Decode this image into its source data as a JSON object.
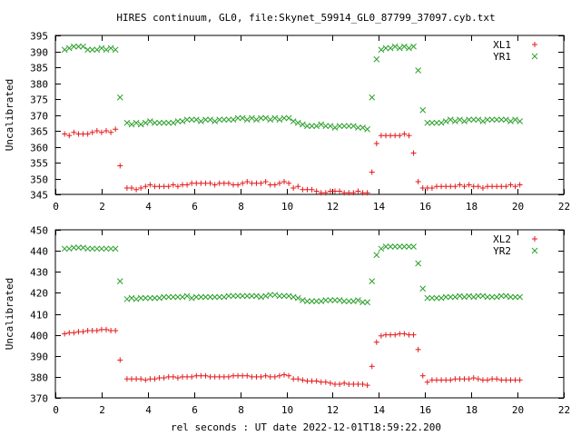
{
  "title": "HIRES continuum, GL0, file:Skynet_59914_GL0_87799_37097.cyb.txt",
  "xlabel": "rel seconds : UT date 2022-12-01T18:59:22.200",
  "chart_data": [
    {
      "type": "scatter",
      "ylabel": "Uncalibrated",
      "xlim": [
        0,
        22
      ],
      "ylim": [
        345,
        395
      ],
      "xticks": [
        0,
        2,
        4,
        6,
        8,
        10,
        12,
        14,
        16,
        18,
        20,
        22
      ],
      "yticks": [
        345,
        350,
        355,
        360,
        365,
        370,
        375,
        380,
        385,
        390,
        395
      ],
      "legend": "top-right",
      "series": [
        {
          "name": "XL1",
          "marker": "plus",
          "color": "#e41a1c",
          "x": [
            0.4,
            0.6,
            0.8,
            1.0,
            1.2,
            1.4,
            1.6,
            1.8,
            2.0,
            2.2,
            2.4,
            2.6,
            2.8,
            3.1,
            3.3,
            3.5,
            3.7,
            3.9,
            4.1,
            4.3,
            4.5,
            4.7,
            4.9,
            5.1,
            5.3,
            5.5,
            5.7,
            5.9,
            6.1,
            6.3,
            6.5,
            6.7,
            6.9,
            7.1,
            7.3,
            7.5,
            7.7,
            7.9,
            8.1,
            8.3,
            8.5,
            8.7,
            8.9,
            9.1,
            9.3,
            9.5,
            9.7,
            9.9,
            10.1,
            10.3,
            10.5,
            10.7,
            10.9,
            11.1,
            11.3,
            11.5,
            11.7,
            11.9,
            12.1,
            12.3,
            12.5,
            12.7,
            12.9,
            13.1,
            13.3,
            13.5,
            13.7,
            13.9,
            14.1,
            14.3,
            14.5,
            14.7,
            14.9,
            15.1,
            15.3,
            15.5,
            15.7,
            15.9,
            16.1,
            16.3,
            16.5,
            16.7,
            16.9,
            17.1,
            17.3,
            17.5,
            17.7,
            17.9,
            18.1,
            18.3,
            18.5,
            18.7,
            18.9,
            19.1,
            19.3,
            19.5,
            19.7,
            19.9,
            20.1
          ],
          "y": [
            364,
            363.5,
            364.5,
            364,
            364,
            364,
            364.5,
            365,
            364.5,
            365,
            364.5,
            365.5,
            354,
            347,
            347,
            346.5,
            347,
            347.5,
            348,
            347.5,
            347.5,
            347.5,
            347.5,
            348,
            347.5,
            348,
            348,
            348.5,
            348.5,
            348.5,
            348.5,
            348.5,
            348,
            348.5,
            348.5,
            348.5,
            348,
            348,
            348.5,
            349,
            348.5,
            348.5,
            348.5,
            349,
            348,
            348,
            348.5,
            349,
            348.5,
            347,
            347.5,
            346.5,
            346.5,
            346.5,
            346,
            345.5,
            345.5,
            346,
            346,
            346,
            345.5,
            345.5,
            345.5,
            346,
            345.5,
            345.5,
            352,
            361,
            363.5,
            363.5,
            363.5,
            363.5,
            363.5,
            364,
            363.5,
            358,
            349,
            347,
            347,
            347,
            347.5,
            347.5,
            347.5,
            347.5,
            347.5,
            348,
            347.5,
            348,
            347.5,
            347.5,
            347,
            347.5,
            347.5,
            347.5,
            347.5,
            347.5,
            348,
            347.5,
            348
          ]
        },
        {
          "name": "YR1",
          "marker": "cross",
          "color": "#2ca02c",
          "x": [
            0.4,
            0.6,
            0.8,
            1.0,
            1.2,
            1.4,
            1.6,
            1.8,
            2.0,
            2.2,
            2.4,
            2.6,
            2.8,
            3.1,
            3.3,
            3.5,
            3.7,
            3.9,
            4.1,
            4.3,
            4.5,
            4.7,
            4.9,
            5.1,
            5.3,
            5.5,
            5.7,
            5.9,
            6.1,
            6.3,
            6.5,
            6.7,
            6.9,
            7.1,
            7.3,
            7.5,
            7.7,
            7.9,
            8.1,
            8.3,
            8.5,
            8.7,
            8.9,
            9.1,
            9.3,
            9.5,
            9.7,
            9.9,
            10.1,
            10.3,
            10.5,
            10.7,
            10.9,
            11.1,
            11.3,
            11.5,
            11.7,
            11.9,
            12.1,
            12.3,
            12.5,
            12.7,
            12.9,
            13.1,
            13.3,
            13.5,
            13.7,
            13.9,
            14.1,
            14.3,
            14.5,
            14.7,
            14.9,
            15.1,
            15.3,
            15.5,
            15.7,
            15.9,
            16.1,
            16.3,
            16.5,
            16.7,
            16.9,
            17.1,
            17.3,
            17.5,
            17.7,
            17.9,
            18.1,
            18.3,
            18.5,
            18.7,
            18.9,
            19.1,
            19.3,
            19.5,
            19.7,
            19.9,
            20.1
          ],
          "y": [
            390.5,
            391,
            391.5,
            391.5,
            391.5,
            390.5,
            390.5,
            390.5,
            391,
            390.5,
            391,
            390.5,
            375.5,
            367.5,
            367,
            367.5,
            367,
            367.5,
            368,
            367.5,
            367.5,
            367.5,
            367.5,
            367.5,
            368,
            368,
            368.5,
            368.5,
            368.5,
            368,
            368.5,
            368.5,
            368,
            368.5,
            368.5,
            368.5,
            368.5,
            369,
            369,
            368.5,
            369,
            368.5,
            369,
            369,
            368.5,
            369,
            368.5,
            369,
            369,
            368,
            367.5,
            367,
            366.5,
            366.5,
            366.5,
            367,
            366.5,
            366.5,
            366,
            366.5,
            366.5,
            366.5,
            366.5,
            366,
            366,
            365.5,
            375.5,
            387.5,
            390.5,
            391,
            391,
            391.5,
            391,
            391.5,
            391,
            391.5,
            384,
            371.5,
            367.5,
            367.5,
            367.5,
            367.5,
            368,
            368.5,
            368,
            368.5,
            368,
            368.5,
            368.5,
            368.5,
            368,
            368.5,
            368.5,
            368.5,
            368.5,
            368.5,
            368,
            368.5,
            368
          ]
        }
      ]
    },
    {
      "type": "scatter",
      "ylabel": "Uncalibrated",
      "xlim": [
        0,
        22
      ],
      "ylim": [
        370,
        450
      ],
      "xticks": [
        0,
        2,
        4,
        6,
        8,
        10,
        12,
        14,
        16,
        18,
        20,
        22
      ],
      "yticks": [
        370,
        380,
        390,
        400,
        410,
        420,
        430,
        440,
        450
      ],
      "legend": "top-right",
      "series": [
        {
          "name": "XL2",
          "marker": "plus",
          "color": "#e41a1c",
          "x": [
            0.4,
            0.6,
            0.8,
            1.0,
            1.2,
            1.4,
            1.6,
            1.8,
            2.0,
            2.2,
            2.4,
            2.6,
            2.8,
            3.1,
            3.3,
            3.5,
            3.7,
            3.9,
            4.1,
            4.3,
            4.5,
            4.7,
            4.9,
            5.1,
            5.3,
            5.5,
            5.7,
            5.9,
            6.1,
            6.3,
            6.5,
            6.7,
            6.9,
            7.1,
            7.3,
            7.5,
            7.7,
            7.9,
            8.1,
            8.3,
            8.5,
            8.7,
            8.9,
            9.1,
            9.3,
            9.5,
            9.7,
            9.9,
            10.1,
            10.3,
            10.5,
            10.7,
            10.9,
            11.1,
            11.3,
            11.5,
            11.7,
            11.9,
            12.1,
            12.3,
            12.5,
            12.7,
            12.9,
            13.1,
            13.3,
            13.5,
            13.7,
            13.9,
            14.1,
            14.3,
            14.5,
            14.7,
            14.9,
            15.1,
            15.3,
            15.5,
            15.7,
            15.9,
            16.1,
            16.3,
            16.5,
            16.7,
            16.9,
            17.1,
            17.3,
            17.5,
            17.7,
            17.9,
            18.1,
            18.3,
            18.5,
            18.7,
            18.9,
            19.1,
            19.3,
            19.5,
            19.7,
            19.9,
            20.1
          ],
          "y": [
            400.5,
            401,
            401,
            401.5,
            401.5,
            402,
            402,
            402,
            402.5,
            402.5,
            402,
            402,
            388,
            379,
            379,
            379,
            379,
            378.5,
            379,
            379,
            379.5,
            379.5,
            380,
            380,
            379.5,
            380,
            380,
            380,
            380.5,
            380.5,
            380.5,
            380,
            380,
            380,
            380,
            380,
            380.5,
            380.5,
            380.5,
            380.5,
            380,
            380,
            380,
            380.5,
            380,
            380,
            380.5,
            381,
            380.5,
            379,
            379,
            378.5,
            378,
            378,
            378,
            377.5,
            377.5,
            377,
            376.5,
            376.5,
            377,
            376.5,
            376.5,
            376.5,
            376.5,
            376,
            385,
            396.5,
            399.5,
            400,
            400,
            400,
            400.5,
            400.5,
            400,
            400,
            393,
            380.5,
            377.5,
            378.5,
            378.5,
            378.5,
            378.5,
            378.5,
            379,
            379,
            379,
            379,
            379.5,
            379,
            378.5,
            378.5,
            379,
            379,
            378.5,
            378.5,
            378.5,
            378.5,
            378.5
          ]
        },
        {
          "name": "YR2",
          "marker": "cross",
          "color": "#2ca02c",
          "x": [
            0.4,
            0.6,
            0.8,
            1.0,
            1.2,
            1.4,
            1.6,
            1.8,
            2.0,
            2.2,
            2.4,
            2.6,
            2.8,
            3.1,
            3.3,
            3.5,
            3.7,
            3.9,
            4.1,
            4.3,
            4.5,
            4.7,
            4.9,
            5.1,
            5.3,
            5.5,
            5.7,
            5.9,
            6.1,
            6.3,
            6.5,
            6.7,
            6.9,
            7.1,
            7.3,
            7.5,
            7.7,
            7.9,
            8.1,
            8.3,
            8.5,
            8.7,
            8.9,
            9.1,
            9.3,
            9.5,
            9.7,
            9.9,
            10.1,
            10.3,
            10.5,
            10.7,
            10.9,
            11.1,
            11.3,
            11.5,
            11.7,
            11.9,
            12.1,
            12.3,
            12.5,
            12.7,
            12.9,
            13.1,
            13.3,
            13.5,
            13.7,
            13.9,
            14.1,
            14.3,
            14.5,
            14.7,
            14.9,
            15.1,
            15.3,
            15.5,
            15.7,
            15.9,
            16.1,
            16.3,
            16.5,
            16.7,
            16.9,
            17.1,
            17.3,
            17.5,
            17.7,
            17.9,
            18.1,
            18.3,
            18.5,
            18.7,
            18.9,
            19.1,
            19.3,
            19.5,
            19.7,
            19.9,
            20.1
          ],
          "y": [
            441,
            441,
            441.5,
            441.5,
            441.5,
            441,
            441,
            441,
            441,
            441,
            441,
            441,
            425.5,
            417,
            417.5,
            417,
            417.5,
            417.5,
            417.5,
            417.5,
            417.5,
            418,
            418,
            418,
            418,
            418,
            418.5,
            417.5,
            418,
            418,
            418,
            418,
            418,
            418,
            418,
            418.5,
            418.5,
            418.5,
            418.5,
            418.5,
            418.5,
            418.5,
            418,
            418.5,
            419,
            419,
            418.5,
            418.5,
            418.5,
            418,
            417.5,
            416.5,
            416,
            416,
            416,
            416,
            416.5,
            416.5,
            416.5,
            416.5,
            416,
            416,
            416,
            416.5,
            415.5,
            415.5,
            425.5,
            438,
            441,
            442,
            442,
            442,
            442,
            442,
            442,
            442,
            434,
            422,
            417.5,
            417.5,
            417.5,
            417.5,
            418,
            418,
            418,
            418.5,
            418,
            418.5,
            418,
            418.5,
            418.5,
            418,
            418,
            418,
            418.5,
            418.5,
            418,
            418,
            418
          ]
        }
      ]
    }
  ]
}
